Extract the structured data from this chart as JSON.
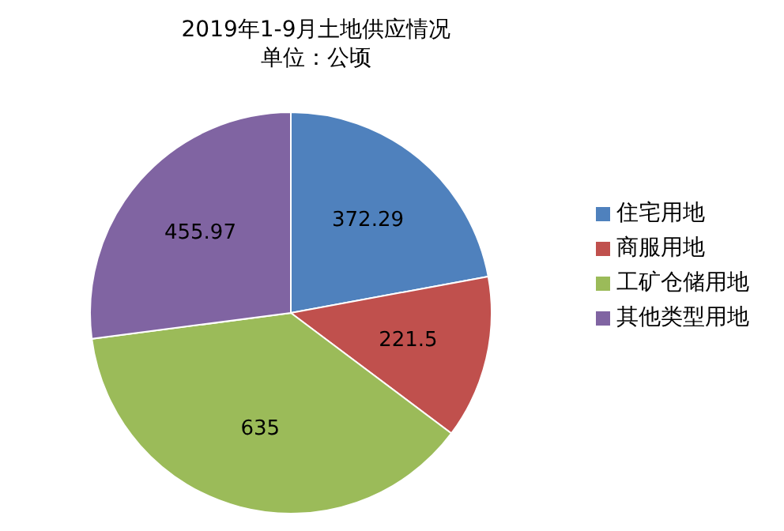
{
  "chart_data": {
    "type": "pie",
    "title": "2019年1-9月土地供应情况",
    "subtitle": "单位：公顷",
    "categories": [
      "住宅用地",
      "商服用地",
      "工矿仓储用地",
      "其他类型用地"
    ],
    "values": [
      372.29,
      221.5,
      635,
      455.97
    ],
    "colors": [
      "#4f81bd",
      "#c0504d",
      "#9bbb59",
      "#8064a2"
    ],
    "data_labels": true,
    "legend": "right"
  }
}
